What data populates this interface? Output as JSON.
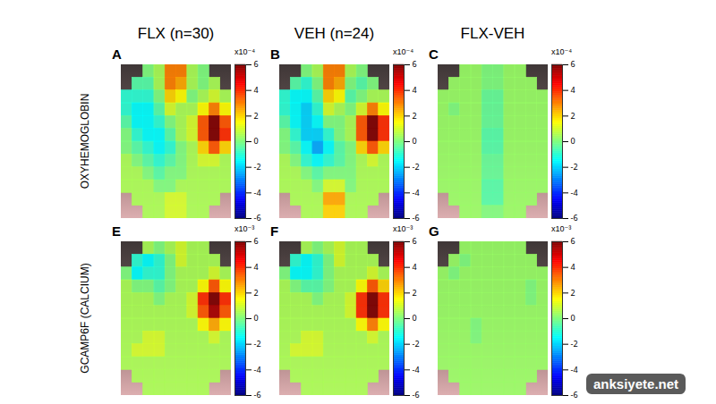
{
  "chart_data": {
    "type": "heatmap",
    "columns": [
      "FLX (n=30)",
      "VEH (n=24)",
      "FLX-VEH"
    ],
    "rows": [
      {
        "label": "OXYHEMOGLOBIN",
        "colorbar": {
          "lim": [
            -6,
            6
          ],
          "ticks": [
            -6,
            -4,
            -2,
            0,
            2,
            4,
            6
          ],
          "label": "x10⁻⁴"
        },
        "panels": [
          {
            "letter": "A",
            "cells": [
              [
                null,
                null,
                0,
                0.5,
                3,
                3,
                0.5,
                0,
                null,
                null
              ],
              [
                null,
                -0.5,
                -0.5,
                0.5,
                3,
                2.5,
                0.5,
                0,
                0.5,
                null
              ],
              [
                -1,
                -1,
                -1,
                0,
                2,
                1.5,
                0,
                0.5,
                1,
                0.5
              ],
              [
                -1,
                -1.5,
                -1.5,
                -0.5,
                1,
                0.5,
                0.5,
                1.5,
                3,
                1.5
              ],
              [
                -0.5,
                -1.5,
                -1.5,
                -1,
                0,
                0.5,
                1,
                3.5,
                6,
                3.5
              ],
              [
                0,
                -1,
                -1.5,
                -1.5,
                -0.5,
                0.5,
                1,
                3.5,
                6,
                4
              ],
              [
                0,
                -0.5,
                -1,
                -1.5,
                -1,
                0,
                0.5,
                2,
                3.5,
                2
              ],
              [
                0.5,
                0,
                -0.5,
                -1,
                -0.5,
                0,
                0.5,
                1,
                1,
                0.5
              ],
              [
                0.5,
                0.5,
                0,
                -0.5,
                0,
                0,
                0.5,
                0.5,
                0.5,
                0.5
              ],
              [
                0.5,
                0.5,
                0.5,
                0,
                0,
                0.5,
                0.5,
                0.5,
                0.5,
                0.5
              ],
              [
                null,
                0.5,
                0.5,
                0.5,
                1,
                1,
                0.5,
                0.5,
                0.5,
                null
              ],
              [
                null,
                null,
                0.5,
                0.5,
                1,
                1,
                0.5,
                0.5,
                null,
                null
              ]
            ]
          },
          {
            "letter": "B",
            "cells": [
              [
                null,
                null,
                0,
                0.5,
                3,
                3,
                0.5,
                0,
                null,
                null
              ],
              [
                null,
                -0.5,
                -1,
                0,
                3,
                2.5,
                0,
                -0.5,
                0,
                null
              ],
              [
                -1,
                -1.5,
                -1.5,
                -0.5,
                2,
                1.5,
                -0.5,
                0,
                0.5,
                0.5
              ],
              [
                -1,
                -1.5,
                -2,
                -1,
                1,
                0.5,
                0,
                1,
                3,
                1.5
              ],
              [
                -0.5,
                -1.5,
                -2,
                -1.5,
                0,
                0,
                0.5,
                3.5,
                6,
                4
              ],
              [
                0,
                -1,
                -2,
                -2,
                -1,
                0,
                0.5,
                3.5,
                6,
                4
              ],
              [
                0,
                -0.5,
                -1.5,
                -2.5,
                -1.5,
                -0.5,
                0,
                2,
                3.5,
                2
              ],
              [
                0.5,
                0,
                -1,
                -1.5,
                -1,
                -0.5,
                0,
                0.5,
                1,
                0.5
              ],
              [
                0.5,
                0.5,
                0,
                -0.5,
                0,
                0,
                0,
                0.5,
                0.5,
                0.5
              ],
              [
                0.5,
                0.5,
                0.5,
                0,
                1,
                1,
                0,
                0.5,
                0.5,
                0.5
              ],
              [
                null,
                0.5,
                0.5,
                0.5,
                2.5,
                2.5,
                0.5,
                0.5,
                0.5,
                null
              ],
              [
                null,
                null,
                0.5,
                0.5,
                2,
                2,
                0.5,
                0.5,
                null,
                null
              ]
            ]
          },
          {
            "letter": "C",
            "cells": [
              [
                null,
                null,
                0.3,
                0.3,
                0,
                0,
                0.3,
                0.3,
                null,
                null
              ],
              [
                null,
                0.3,
                0.3,
                0.3,
                0,
                0,
                0.3,
                0.3,
                0.3,
                null
              ],
              [
                0.3,
                0.3,
                0.3,
                0.3,
                -0.3,
                -0.3,
                0.3,
                0.3,
                0.3,
                0.3
              ],
              [
                0.3,
                0,
                0.3,
                0.3,
                -0.3,
                -0.3,
                0.3,
                0.3,
                0.3,
                0.3
              ],
              [
                0.3,
                0.3,
                0.3,
                0.3,
                -0.3,
                -0.3,
                0.3,
                0.3,
                0.3,
                0.3
              ],
              [
                0.3,
                0.3,
                0.3,
                0.3,
                -0.5,
                -0.5,
                0.3,
                0.3,
                0.3,
                0.3
              ],
              [
                0.3,
                0.3,
                0.3,
                0.3,
                -0.5,
                -0.5,
                0.3,
                0.3,
                0.3,
                0.3
              ],
              [
                0.3,
                0.3,
                0.3,
                0.3,
                -0.3,
                -0.3,
                0.3,
                0.3,
                0.3,
                0.3
              ],
              [
                0.3,
                0.3,
                0.3,
                0.3,
                -0.3,
                -0.3,
                0.3,
                0.3,
                0.3,
                0.3
              ],
              [
                0.3,
                0.3,
                0.3,
                0.3,
                -0.5,
                -0.5,
                0.3,
                0.3,
                0.3,
                0.3
              ],
              [
                null,
                0.3,
                0.3,
                0.3,
                -0.5,
                -0.5,
                0.3,
                0.3,
                0.3,
                null
              ],
              [
                null,
                null,
                0.3,
                0.3,
                0,
                0,
                0.3,
                0.3,
                null,
                null
              ]
            ]
          }
        ]
      },
      {
        "label": "GCAMP6F (CALCIUM)",
        "colorbar": {
          "lim": [
            -6,
            6
          ],
          "ticks": [
            -6,
            -4,
            -2,
            0,
            2,
            4,
            6
          ],
          "label": "x10⁻³"
        },
        "panels": [
          {
            "letter": "E",
            "cells": [
              [
                null,
                null,
                0.5,
                0,
                0.5,
                1,
                0.5,
                0.5,
                null,
                null
              ],
              [
                null,
                -1,
                -1.5,
                -1,
                0,
                1,
                0.5,
                0.5,
                0.5,
                null
              ],
              [
                0,
                -1.5,
                -1,
                -1,
                0,
                0.5,
                0.5,
                0.5,
                1,
                0.5
              ],
              [
                0.5,
                0,
                0,
                -0.5,
                0,
                0.5,
                0.5,
                1.5,
                3.5,
                1.5
              ],
              [
                0.5,
                0.5,
                0.5,
                0,
                0.5,
                0.5,
                1,
                4,
                6,
                4
              ],
              [
                0.5,
                0.5,
                0.5,
                0.5,
                0.5,
                0.5,
                1,
                3.5,
                5.5,
                3.5
              ],
              [
                0.5,
                0.5,
                0.5,
                0.5,
                0.5,
                0.5,
                0.5,
                1.5,
                2.5,
                1.5
              ],
              [
                0.5,
                0.5,
                1,
                1,
                0.5,
                0.5,
                0.5,
                0.5,
                1,
                0.5
              ],
              [
                0.5,
                1,
                1,
                1,
                0.5,
                0.5,
                0.5,
                0.5,
                0.5,
                0.5
              ],
              [
                0.5,
                0.5,
                0.5,
                0.5,
                0.5,
                0.5,
                0.5,
                0.5,
                0.5,
                0.5
              ],
              [
                null,
                0.5,
                0.5,
                0.5,
                0.5,
                0.5,
                0.5,
                0.5,
                0.5,
                null
              ],
              [
                null,
                null,
                0.5,
                0.5,
                0.5,
                0.5,
                0.5,
                0.5,
                null,
                null
              ]
            ]
          },
          {
            "letter": "F",
            "cells": [
              [
                null,
                null,
                0.5,
                0,
                0.5,
                1,
                0.5,
                0.5,
                null,
                null
              ],
              [
                null,
                -1,
                -1.5,
                -1,
                0,
                1,
                0.5,
                0.5,
                0.5,
                null
              ],
              [
                0,
                -1.5,
                -1.5,
                -1,
                0,
                0.5,
                0.5,
                0.5,
                1,
                0.5
              ],
              [
                0.5,
                0,
                -0.5,
                -0.5,
                0,
                0.5,
                0.5,
                1.5,
                3.5,
                2
              ],
              [
                0.5,
                0.5,
                0.5,
                0,
                0.5,
                0.5,
                1,
                4,
                6,
                4
              ],
              [
                0.5,
                0.5,
                0.5,
                0.5,
                0.5,
                0.5,
                1,
                4,
                6,
                4
              ],
              [
                0.5,
                0.5,
                0.5,
                0.5,
                0.5,
                0.5,
                0.5,
                1.5,
                3,
                1.5
              ],
              [
                0.5,
                0.5,
                1,
                1,
                0.5,
                0.5,
                0.5,
                0.5,
                1,
                0.5
              ],
              [
                0.5,
                1,
                1,
                1,
                0.5,
                0.5,
                0.5,
                0.5,
                0.5,
                0.5
              ],
              [
                0.5,
                0.5,
                0.5,
                0.5,
                0.5,
                0.5,
                0.5,
                0.5,
                0.5,
                0.5
              ],
              [
                null,
                0.5,
                0.5,
                0.5,
                0.5,
                0.5,
                0.5,
                0.5,
                0.5,
                null
              ],
              [
                null,
                null,
                0.5,
                0.5,
                0.5,
                0.5,
                0.5,
                0.5,
                null,
                null
              ]
            ]
          },
          {
            "letter": "G",
            "cells": [
              [
                null,
                null,
                0.3,
                0.3,
                0.3,
                0.3,
                0.3,
                0.3,
                null,
                null
              ],
              [
                null,
                0.3,
                0,
                0.3,
                0.3,
                0.3,
                0.3,
                0.3,
                0.3,
                null
              ],
              [
                0.3,
                0,
                0.3,
                0.3,
                0.3,
                0.3,
                0.3,
                0.3,
                0.3,
                0.3
              ],
              [
                0.3,
                0.3,
                0.3,
                0.3,
                0.3,
                0.3,
                0.3,
                0.3,
                0,
                0.3
              ],
              [
                0.3,
                0.3,
                0.3,
                0.3,
                0.3,
                0.3,
                0.3,
                0.3,
                0,
                0.3
              ],
              [
                0.3,
                0.3,
                0.3,
                0.3,
                0.3,
                0.3,
                0.3,
                0.3,
                0.3,
                0.3
              ],
              [
                0.3,
                0.3,
                0.3,
                0,
                0.3,
                0.3,
                0.3,
                0.3,
                0.3,
                0.3
              ],
              [
                0.3,
                0.3,
                0.3,
                0,
                0.3,
                0.3,
                0.3,
                0.3,
                0.3,
                0.3
              ],
              [
                0.3,
                0.3,
                0.3,
                0.3,
                0.3,
                0.3,
                0.3,
                0.3,
                0.3,
                0.3
              ],
              [
                0.3,
                0.3,
                0.3,
                0.3,
                0.3,
                0.3,
                0.3,
                0.3,
                0.3,
                0.3
              ],
              [
                null,
                0.3,
                0.3,
                0.3,
                0.3,
                0.3,
                0.3,
                0.3,
                0.3,
                null
              ],
              [
                null,
                null,
                0.3,
                0.3,
                0.3,
                0.3,
                0.3,
                0.3,
                null,
                null
              ]
            ]
          }
        ]
      }
    ],
    "watermark": "anksiyete.net"
  }
}
